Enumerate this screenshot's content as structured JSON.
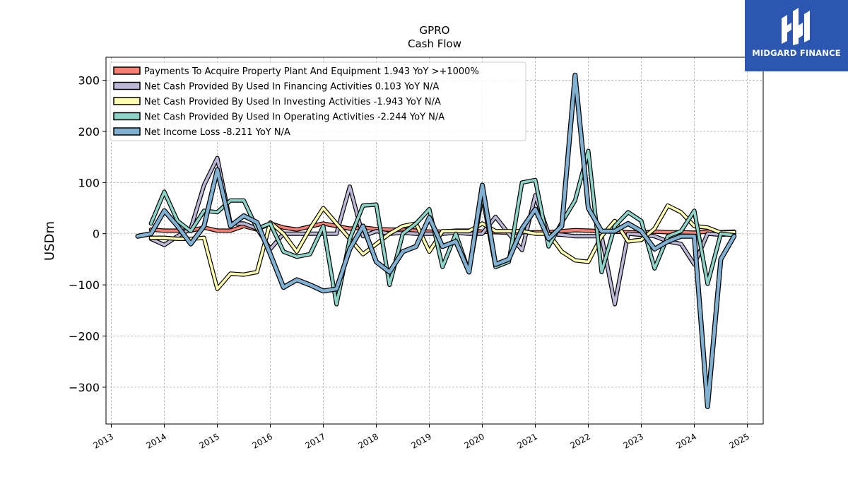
{
  "brand": {
    "name": "MIDGARD FINANCE",
    "logo_icon": "midgard-mh-logo-icon",
    "background": "#2b57b0"
  },
  "chart_data": {
    "type": "line",
    "title": "GPRO",
    "subtitle": "Cash Flow",
    "xlabel": "",
    "ylabel": "USDm",
    "xlim": [
      2012.9,
      2025.3
    ],
    "ylim": [
      -372,
      345
    ],
    "xticks": [
      "2013",
      "2014",
      "2015",
      "2016",
      "2017",
      "2018",
      "2019",
      "2020",
      "2021",
      "2022",
      "2023",
      "2024",
      "2025"
    ],
    "yticks": [
      "−300",
      "−200",
      "−100",
      "0",
      "100",
      "200",
      "300"
    ],
    "grid": true,
    "legend_position": "top-left",
    "series": [
      {
        "name": "Payments To Acquire Property Plant And Equipment  1.943 YoY >+1000%",
        "color": "#f47f72",
        "points": [
          [
            2013.75,
            8
          ],
          [
            2014.0,
            6
          ],
          [
            2014.25,
            6
          ],
          [
            2014.5,
            6
          ],
          [
            2014.75,
            12
          ],
          [
            2015.0,
            6
          ],
          [
            2015.25,
            6
          ],
          [
            2015.5,
            15
          ],
          [
            2015.75,
            8
          ],
          [
            2016.0,
            20
          ],
          [
            2016.25,
            12
          ],
          [
            2016.5,
            8
          ],
          [
            2016.75,
            14
          ],
          [
            2017.0,
            20
          ],
          [
            2017.25,
            15
          ],
          [
            2017.5,
            10
          ],
          [
            2017.75,
            12
          ],
          [
            2018.0,
            9
          ],
          [
            2018.25,
            8
          ],
          [
            2018.5,
            8
          ],
          [
            2018.75,
            6
          ],
          [
            2019.0,
            4
          ],
          [
            2019.25,
            4
          ],
          [
            2019.5,
            6
          ],
          [
            2019.75,
            6
          ],
          [
            2020.0,
            4
          ],
          [
            2020.25,
            3
          ],
          [
            2020.5,
            2
          ],
          [
            2020.75,
            2
          ],
          [
            2021.0,
            3
          ],
          [
            2021.25,
            3
          ],
          [
            2021.5,
            5
          ],
          [
            2021.75,
            7
          ],
          [
            2022.0,
            6
          ],
          [
            2022.25,
            5
          ],
          [
            2022.5,
            4
          ],
          [
            2022.75,
            3
          ],
          [
            2023.0,
            2
          ],
          [
            2023.25,
            4
          ],
          [
            2023.5,
            3
          ],
          [
            2023.75,
            3
          ],
          [
            2024.0,
            2
          ],
          [
            2024.25,
            4
          ],
          [
            2024.5,
            3
          ],
          [
            2024.75,
            4
          ]
        ]
      },
      {
        "name": "Net Cash Provided By Used In Financing Activities  0.103 YoY N/A",
        "color": "#bcb8d7",
        "points": [
          [
            2013.75,
            -10
          ],
          [
            2014.0,
            -22
          ],
          [
            2014.25,
            -5
          ],
          [
            2014.5,
            10
          ],
          [
            2014.75,
            95
          ],
          [
            2015.0,
            148
          ],
          [
            2015.25,
            20
          ],
          [
            2015.5,
            20
          ],
          [
            2015.75,
            10
          ],
          [
            2016.0,
            -30
          ],
          [
            2016.25,
            0
          ],
          [
            2016.5,
            0
          ],
          [
            2016.75,
            0
          ],
          [
            2017.0,
            0
          ],
          [
            2017.25,
            0
          ],
          [
            2017.5,
            92
          ],
          [
            2017.75,
            -5
          ],
          [
            2018.0,
            5
          ],
          [
            2018.25,
            0
          ],
          [
            2018.5,
            2
          ],
          [
            2018.75,
            0
          ],
          [
            2019.0,
            0
          ],
          [
            2019.25,
            0
          ],
          [
            2019.5,
            2
          ],
          [
            2019.75,
            0
          ],
          [
            2020.0,
            0
          ],
          [
            2020.25,
            33
          ],
          [
            2020.5,
            0
          ],
          [
            2020.75,
            -32
          ],
          [
            2021.0,
            75
          ],
          [
            2021.25,
            0
          ],
          [
            2021.5,
            -2
          ],
          [
            2021.75,
            -5
          ],
          [
            2022.0,
            -5
          ],
          [
            2022.25,
            -5
          ],
          [
            2022.5,
            -138
          ],
          [
            2022.75,
            0
          ],
          [
            2023.0,
            -2
          ],
          [
            2023.25,
            -5
          ],
          [
            2023.5,
            -15
          ],
          [
            2023.75,
            -20
          ],
          [
            2024.0,
            -60
          ],
          [
            2024.25,
            0
          ],
          [
            2024.5,
            -2
          ],
          [
            2024.75,
            0
          ]
        ]
      },
      {
        "name": "Net Cash Provided By Used In Investing Activities  -1.943 YoY N/A",
        "color": "#ffffb2",
        "points": [
          [
            2013.75,
            -8
          ],
          [
            2014.0,
            -8
          ],
          [
            2014.25,
            -10
          ],
          [
            2014.5,
            -10
          ],
          [
            2014.75,
            -8
          ],
          [
            2015.0,
            -108
          ],
          [
            2015.25,
            -78
          ],
          [
            2015.5,
            -80
          ],
          [
            2015.75,
            -75
          ],
          [
            2016.0,
            22
          ],
          [
            2016.25,
            0
          ],
          [
            2016.5,
            -35
          ],
          [
            2016.75,
            10
          ],
          [
            2017.0,
            50
          ],
          [
            2017.25,
            20
          ],
          [
            2017.5,
            -10
          ],
          [
            2017.75,
            -40
          ],
          [
            2018.0,
            -20
          ],
          [
            2018.25,
            0
          ],
          [
            2018.5,
            15
          ],
          [
            2018.75,
            20
          ],
          [
            2019.0,
            -35
          ],
          [
            2019.25,
            5
          ],
          [
            2019.5,
            5
          ],
          [
            2019.75,
            5
          ],
          [
            2020.0,
            20
          ],
          [
            2020.25,
            5
          ],
          [
            2020.5,
            5
          ],
          [
            2020.75,
            5
          ],
          [
            2021.0,
            0
          ],
          [
            2021.25,
            0
          ],
          [
            2021.5,
            -35
          ],
          [
            2021.75,
            -52
          ],
          [
            2022.0,
            -55
          ],
          [
            2022.25,
            -5
          ],
          [
            2022.5,
            25
          ],
          [
            2022.75,
            -15
          ],
          [
            2023.0,
            -12
          ],
          [
            2023.25,
            10
          ],
          [
            2023.5,
            55
          ],
          [
            2023.75,
            42
          ],
          [
            2024.0,
            15
          ],
          [
            2024.25,
            12
          ],
          [
            2024.5,
            2
          ],
          [
            2024.75,
            3
          ]
        ]
      },
      {
        "name": "Net Cash Provided By Used In Operating Activities  -2.244 YoY N/A",
        "color": "#8dd3c7",
        "points": [
          [
            2013.75,
            20
          ],
          [
            2014.0,
            82
          ],
          [
            2014.25,
            25
          ],
          [
            2014.5,
            5
          ],
          [
            2014.75,
            45
          ],
          [
            2015.0,
            42
          ],
          [
            2015.25,
            65
          ],
          [
            2015.5,
            65
          ],
          [
            2015.75,
            10
          ],
          [
            2016.0,
            20
          ],
          [
            2016.25,
            -35
          ],
          [
            2016.5,
            -45
          ],
          [
            2016.75,
            -40
          ],
          [
            2017.0,
            15
          ],
          [
            2017.25,
            -138
          ],
          [
            2017.5,
            -10
          ],
          [
            2017.75,
            55
          ],
          [
            2018.0,
            57
          ],
          [
            2018.25,
            -100
          ],
          [
            2018.5,
            0
          ],
          [
            2018.75,
            20
          ],
          [
            2019.0,
            48
          ],
          [
            2019.25,
            -65
          ],
          [
            2019.5,
            0
          ],
          [
            2019.75,
            -75
          ],
          [
            2020.0,
            75
          ],
          [
            2020.25,
            -65
          ],
          [
            2020.5,
            -55
          ],
          [
            2020.75,
            100
          ],
          [
            2021.0,
            105
          ],
          [
            2021.25,
            -25
          ],
          [
            2021.5,
            22
          ],
          [
            2021.75,
            65
          ],
          [
            2022.0,
            162
          ],
          [
            2022.25,
            -75
          ],
          [
            2022.5,
            15
          ],
          [
            2022.75,
            42
          ],
          [
            2023.0,
            25
          ],
          [
            2023.25,
            -68
          ],
          [
            2023.5,
            -5
          ],
          [
            2023.75,
            5
          ],
          [
            2024.0,
            45
          ],
          [
            2024.25,
            -98
          ],
          [
            2024.5,
            0
          ],
          [
            2024.75,
            -3
          ]
        ]
      },
      {
        "name": "Net Income Loss  -8.211 YoY N/A",
        "color": "#80b1d3",
        "points": [
          [
            2013.5,
            -5
          ],
          [
            2013.75,
            0
          ],
          [
            2014.0,
            45
          ],
          [
            2014.25,
            15
          ],
          [
            2014.5,
            -20
          ],
          [
            2014.75,
            15
          ],
          [
            2015.0,
            125
          ],
          [
            2015.25,
            15
          ],
          [
            2015.5,
            35
          ],
          [
            2015.75,
            22
          ],
          [
            2016.0,
            -40
          ],
          [
            2016.25,
            -105
          ],
          [
            2016.5,
            -90
          ],
          [
            2016.75,
            -100
          ],
          [
            2017.0,
            -112
          ],
          [
            2017.25,
            -108
          ],
          [
            2017.5,
            -30
          ],
          [
            2017.75,
            15
          ],
          [
            2018.0,
            -55
          ],
          [
            2018.25,
            -75
          ],
          [
            2018.5,
            -35
          ],
          [
            2018.75,
            -25
          ],
          [
            2019.0,
            32
          ],
          [
            2019.25,
            -25
          ],
          [
            2019.5,
            -15
          ],
          [
            2019.75,
            -75
          ],
          [
            2020.0,
            95
          ],
          [
            2020.25,
            -60
          ],
          [
            2020.5,
            -50
          ],
          [
            2020.75,
            10
          ],
          [
            2021.0,
            48
          ],
          [
            2021.25,
            -10
          ],
          [
            2021.5,
            15
          ],
          [
            2021.75,
            310
          ],
          [
            2022.0,
            50
          ],
          [
            2022.25,
            5
          ],
          [
            2022.5,
            5
          ],
          [
            2022.75,
            20
          ],
          [
            2023.0,
            5
          ],
          [
            2023.25,
            -30
          ],
          [
            2023.5,
            -15
          ],
          [
            2023.75,
            -5
          ],
          [
            2024.0,
            -5
          ],
          [
            2024.25,
            -338
          ],
          [
            2024.5,
            -50
          ],
          [
            2024.75,
            -5
          ]
        ]
      }
    ]
  }
}
